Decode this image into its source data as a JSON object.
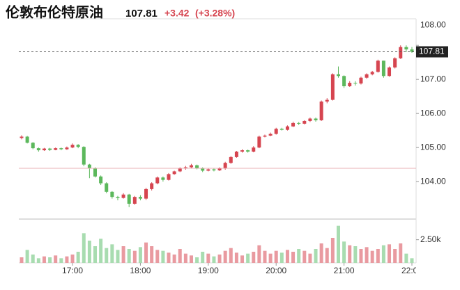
{
  "chart_data": {
    "type": "candlestick",
    "title": "伦敦布伦特原油",
    "last_price": 107.81,
    "change": "+3.42",
    "change_pct": "(+3.28%)",
    "up_color": "#d64550",
    "down_color": "#5cb85c",
    "up_volume_color": "#e99aa0",
    "down_volume_color": "#a8dcb0",
    "x": [
      "16:15",
      "16:20",
      "16:25",
      "16:30",
      "16:35",
      "16:40",
      "16:45",
      "16:50",
      "16:55",
      "17:00",
      "17:05",
      "17:10",
      "17:15",
      "17:20",
      "17:25",
      "17:30",
      "17:35",
      "17:40",
      "17:45",
      "17:50",
      "17:55",
      "18:00",
      "18:05",
      "18:10",
      "18:15",
      "18:20",
      "18:25",
      "18:30",
      "18:35",
      "18:40",
      "18:45",
      "18:50",
      "18:55",
      "19:00",
      "19:05",
      "19:10",
      "19:15",
      "19:20",
      "19:25",
      "19:30",
      "19:35",
      "19:40",
      "19:45",
      "19:50",
      "19:55",
      "20:00",
      "20:05",
      "20:10",
      "20:15",
      "20:20",
      "20:25",
      "20:30",
      "20:35",
      "20:40",
      "20:45",
      "20:50",
      "20:55",
      "21:00",
      "21:05",
      "21:10",
      "21:15",
      "21:20",
      "21:25",
      "21:30",
      "21:35",
      "21:40",
      "21:45",
      "21:50",
      "21:55",
      "22:00"
    ],
    "open": [
      105.28,
      105.32,
      105.14,
      104.98,
      104.92,
      104.97,
      104.93,
      104.98,
      104.95,
      105.0,
      105.08,
      105.02,
      104.5,
      104.4,
      104.15,
      103.95,
      103.7,
      103.55,
      103.52,
      103.62,
      103.35,
      103.55,
      103.5,
      103.78,
      103.95,
      104.12,
      104.05,
      104.22,
      104.3,
      104.38,
      104.42,
      104.48,
      104.4,
      104.32,
      104.36,
      104.33,
      104.38,
      104.55,
      104.72,
      104.88,
      104.92,
      104.88,
      105.0,
      105.32,
      105.35,
      105.4,
      105.55,
      105.52,
      105.62,
      105.72,
      105.7,
      105.78,
      105.85,
      105.8,
      106.35,
      106.4,
      107.15,
      107.1,
      106.8,
      106.9,
      106.88,
      107.05,
      107.15,
      107.22,
      107.55,
      107.1,
      107.35,
      107.62,
      107.95,
      107.88
    ],
    "high": [
      105.36,
      105.34,
      105.16,
      105.0,
      104.99,
      104.99,
      105.0,
      105.0,
      105.03,
      105.12,
      105.1,
      105.04,
      104.52,
      104.42,
      104.18,
      103.98,
      103.72,
      103.58,
      103.66,
      103.64,
      103.58,
      103.6,
      103.82,
      103.98,
      104.15,
      104.15,
      104.25,
      104.32,
      104.42,
      104.46,
      104.52,
      104.5,
      104.42,
      104.4,
      104.38,
      104.42,
      104.58,
      104.75,
      104.9,
      104.95,
      104.94,
      105.04,
      105.35,
      105.38,
      105.44,
      105.58,
      105.58,
      105.65,
      105.76,
      105.75,
      105.8,
      105.88,
      105.88,
      106.38,
      106.45,
      107.18,
      107.38,
      107.12,
      106.95,
      106.95,
      107.08,
      107.18,
      107.25,
      107.58,
      107.55,
      107.38,
      107.65,
      108.0,
      108.0,
      107.95
    ],
    "low": [
      105.24,
      105.12,
      104.95,
      104.88,
      104.9,
      104.9,
      104.92,
      104.92,
      104.93,
      104.98,
      104.98,
      104.45,
      104.1,
      104.12,
      103.9,
      103.66,
      103.5,
      103.45,
      103.5,
      103.25,
      103.32,
      103.45,
      103.46,
      103.74,
      103.92,
      104.0,
      104.03,
      104.2,
      104.28,
      104.35,
      104.4,
      104.36,
      104.28,
      104.3,
      104.3,
      104.31,
      104.35,
      104.52,
      104.7,
      104.85,
      104.85,
      104.86,
      104.98,
      105.3,
      105.33,
      105.38,
      105.5,
      105.5,
      105.6,
      105.66,
      105.68,
      105.75,
      105.76,
      105.78,
      106.3,
      106.38,
      107.05,
      106.75,
      106.78,
      106.82,
      106.85,
      107.02,
      107.12,
      107.2,
      107.05,
      107.08,
      107.32,
      107.6,
      107.8,
      107.78
    ],
    "close": [
      105.32,
      105.14,
      104.98,
      104.92,
      104.97,
      104.93,
      104.98,
      104.95,
      105.0,
      105.08,
      105.02,
      104.5,
      104.4,
      104.15,
      103.95,
      103.7,
      103.55,
      103.52,
      103.62,
      103.35,
      103.55,
      103.5,
      103.78,
      103.95,
      104.12,
      104.05,
      104.22,
      104.3,
      104.38,
      104.42,
      104.48,
      104.4,
      104.32,
      104.36,
      104.33,
      104.38,
      104.55,
      104.72,
      104.88,
      104.92,
      104.88,
      105.0,
      105.32,
      105.35,
      105.4,
      105.55,
      105.52,
      105.62,
      105.72,
      105.7,
      105.78,
      105.85,
      105.8,
      106.35,
      106.4,
      107.15,
      107.1,
      106.8,
      106.9,
      106.88,
      107.05,
      107.15,
      107.22,
      107.55,
      107.1,
      107.35,
      107.62,
      107.95,
      107.88,
      107.81
    ],
    "volume": [
      600,
      1400,
      900,
      500,
      700,
      600,
      800,
      500,
      700,
      900,
      1200,
      3200,
      2400,
      1800,
      2600,
      1600,
      2000,
      1400,
      1800,
      1500,
      1300,
      1700,
      2200,
      1800,
      1400,
      1300,
      1100,
      900,
      1500,
      1000,
      800,
      600,
      1200,
      1000,
      700,
      900,
      1300,
      1600,
      1100,
      800,
      1000,
      1200,
      1900,
      1300,
      1000,
      1300,
      1100,
      1400,
      1200,
      1500,
      1300,
      1000,
      1500,
      2100,
      1600,
      2700,
      4000,
      2300,
      1900,
      1800,
      1500,
      1700,
      1300,
      1500,
      1900,
      2000,
      1500,
      2100,
      1000,
      500
    ],
    "ylim": [
      102.9,
      108.78
    ],
    "yticks": [
      {
        "value": 104,
        "label": "104.00"
      },
      {
        "value": 105,
        "label": "105.00"
      },
      {
        "value": 106,
        "label": "106.00"
      },
      {
        "value": 107,
        "label": "107.00"
      },
      {
        "value": 108,
        "label": "108.00"
      }
    ],
    "reference_line": 104.39,
    "reference_color": "#eab0b6",
    "volume_ylim": [
      0,
      4500
    ],
    "volume_yticks": [
      {
        "value": 2500,
        "label": "2.50k"
      }
    ],
    "xticks": [
      "17:00",
      "18:00",
      "19:00",
      "20:00",
      "21:00",
      "22:00"
    ],
    "grid": false
  }
}
